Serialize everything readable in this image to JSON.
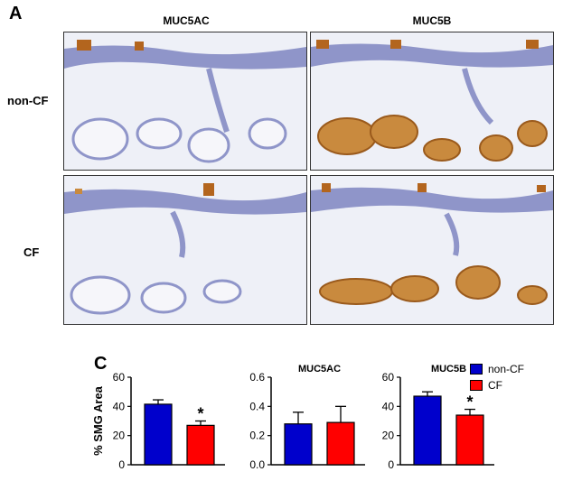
{
  "figure": {
    "panel_a_label": "A",
    "panel_c_label": "C",
    "columns": [
      "MUC5AC",
      "MUC5B"
    ],
    "rows": [
      "non-CF",
      "CF"
    ]
  },
  "legend": {
    "items": [
      {
        "label": "non-CF",
        "color": "#0000cc"
      },
      {
        "label": "CF",
        "color": "#ff0000"
      }
    ]
  },
  "chart_data": [
    {
      "type": "bar",
      "title": "",
      "ylabel": "% SMG Area",
      "categories": [
        "non-CF",
        "CF"
      ],
      "values": [
        41.5,
        27
      ],
      "errors": [
        3,
        3
      ],
      "colors": [
        "#0000cc",
        "#ff0000"
      ],
      "ylim": [
        0,
        60
      ],
      "yticks": [
        "0",
        "20",
        "40",
        "60"
      ],
      "annotations": [
        {
          "category": "CF",
          "text": "*"
        }
      ]
    },
    {
      "type": "bar",
      "title": "MUC5AC",
      "ylabel": "",
      "categories": [
        "non-CF",
        "CF"
      ],
      "values": [
        0.28,
        0.29
      ],
      "errors": [
        0.08,
        0.11
      ],
      "colors": [
        "#0000cc",
        "#ff0000"
      ],
      "ylim": [
        0,
        0.6
      ],
      "yticks": [
        "0.0",
        "0.2",
        "0.4",
        "0.6"
      ],
      "annotations": []
    },
    {
      "type": "bar",
      "title": "MUC5B",
      "ylabel": "",
      "categories": [
        "non-CF",
        "CF"
      ],
      "values": [
        47,
        34
      ],
      "errors": [
        3,
        4
      ],
      "colors": [
        "#0000cc",
        "#ff0000"
      ],
      "ylim": [
        0,
        60
      ],
      "yticks": [
        "0",
        "20",
        "40",
        "60"
      ],
      "annotations": [
        {
          "category": "CF",
          "text": "*"
        }
      ]
    }
  ]
}
